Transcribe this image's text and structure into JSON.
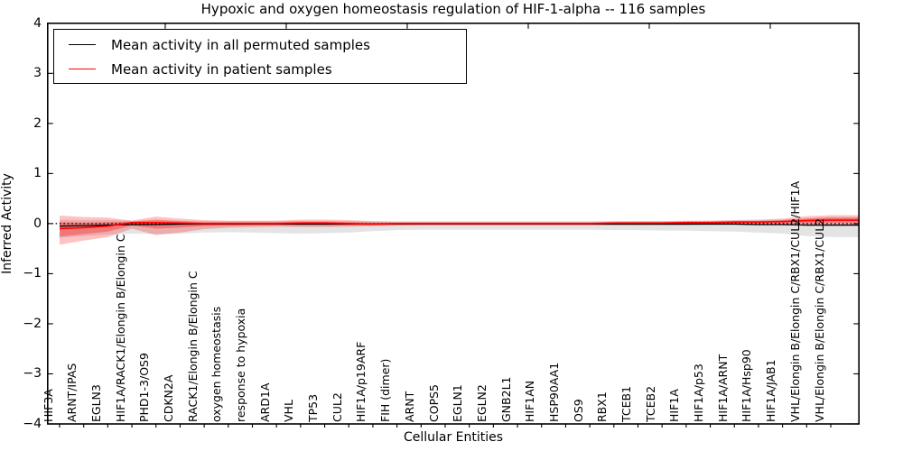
{
  "title": "Hypoxic and oxygen homeostasis regulation of HIF-1-alpha -- 116 samples",
  "legend": {
    "entries": [
      {
        "label": "Mean activity in all permuted samples",
        "color": "#000000"
      },
      {
        "label": "Mean activity in patient samples",
        "color": "#ff0000"
      }
    ],
    "position": "upper left"
  },
  "chart_data": {
    "type": "line",
    "title": "Hypoxic and oxygen homeostasis regulation of HIF-1-alpha -- 116 samples",
    "xlabel": "Cellular Entities",
    "ylabel": "Inferred Activity",
    "ylim": [
      -4,
      4
    ],
    "yticks": [
      4,
      3,
      2,
      1,
      0,
      -1,
      -2,
      -3,
      -4
    ],
    "grid": false,
    "zero_line": {
      "style": "dotted",
      "color": "#000000",
      "y": 0
    },
    "categories": [
      "HIF3A",
      "ARNT/IPAS",
      "EGLN3",
      "HIF1A/RACK1/Elongin B/Elongin C",
      "PHD1-3/OS9",
      "CDKN2A",
      "RACK1/Elongin B/Elongin C",
      "oxygen homeostasis",
      "response to hypoxia",
      "ARD1A",
      "VHL",
      "TP53",
      "CUL2",
      "HIF1A/p19ARF",
      "FIH (dimer)",
      "ARNT",
      "COPS5",
      "EGLN1",
      "EGLN2",
      "GNB2L1",
      "HIF1AN",
      "HSP90AA1",
      "OS9",
      "RBX1",
      "TCEB1",
      "TCEB2",
      "HIF1A",
      "HIF1A/p53",
      "HIF1A/ARNT",
      "HIF1A/Hsp90",
      "HIF1A/JAB1",
      "VHL/Elongin B/Elongin C/RBX1/CUL2/HIF1A",
      "VHL/Elongin B/Elongin C/RBX1/CUL2"
    ],
    "series": [
      {
        "name": "Mean activity in all permuted samples",
        "color": "#000000",
        "values": [
          -0.05,
          -0.04,
          -0.03,
          -0.02,
          -0.02,
          -0.01,
          -0.01,
          -0.01,
          -0.01,
          -0.01,
          -0.01,
          -0.01,
          -0.01,
          -0.01,
          -0.01,
          -0.01,
          -0.01,
          -0.01,
          -0.01,
          -0.01,
          -0.01,
          -0.01,
          -0.01,
          -0.01,
          -0.01,
          -0.01,
          -0.01,
          -0.01,
          -0.01,
          -0.02,
          -0.02,
          -0.03,
          -0.03
        ]
      },
      {
        "name": "Mean activity in patient samples",
        "color": "#ff0000",
        "values": [
          -0.1,
          -0.08,
          -0.05,
          0.02,
          0.02,
          0.01,
          0.0,
          0.0,
          0.0,
          0.0,
          0.01,
          0.01,
          0.0,
          -0.01,
          0.0,
          0.0,
          0.0,
          0.0,
          0.0,
          0.0,
          0.0,
          0.0,
          0.0,
          0.01,
          0.01,
          0.01,
          0.02,
          0.02,
          0.03,
          0.03,
          0.04,
          0.06,
          0.07
        ]
      }
    ],
    "bands": [
      {
        "name": "permuted-sample-range",
        "color": "#aaaaaa",
        "alpha": 0.32,
        "upper": [
          0.08,
          0.07,
          0.07,
          0.06,
          0.06,
          0.06,
          0.05,
          0.05,
          0.05,
          0.05,
          0.05,
          0.05,
          0.05,
          0.04,
          0.04,
          0.04,
          0.04,
          0.04,
          0.04,
          0.04,
          0.04,
          0.04,
          0.04,
          0.04,
          0.05,
          0.05,
          0.05,
          0.06,
          0.06,
          0.07,
          0.08,
          0.11,
          0.13
        ],
        "lower": [
          -0.28,
          -0.25,
          -0.22,
          -0.2,
          -0.21,
          -0.2,
          -0.18,
          -0.17,
          -0.18,
          -0.19,
          -0.2,
          -0.19,
          -0.18,
          -0.15,
          -0.13,
          -0.12,
          -0.12,
          -0.12,
          -0.12,
          -0.12,
          -0.12,
          -0.12,
          -0.12,
          -0.13,
          -0.13,
          -0.14,
          -0.14,
          -0.15,
          -0.16,
          -0.18,
          -0.2,
          -0.25,
          -0.27
        ]
      },
      {
        "name": "patient-sample-range-outer",
        "color": "#ff0000",
        "alpha": 0.24,
        "upper": [
          0.16,
          0.13,
          0.12,
          0.06,
          0.14,
          0.1,
          0.07,
          0.06,
          0.06,
          0.06,
          0.08,
          0.08,
          0.07,
          0.05,
          0.04,
          0.04,
          0.04,
          0.04,
          0.04,
          0.04,
          0.04,
          0.04,
          0.04,
          0.05,
          0.05,
          0.05,
          0.06,
          0.06,
          0.07,
          0.08,
          0.1,
          0.15,
          0.17
        ],
        "lower": [
          -0.42,
          -0.34,
          -0.27,
          -0.1,
          -0.23,
          -0.18,
          -0.11,
          -0.08,
          -0.07,
          -0.06,
          -0.07,
          -0.07,
          -0.06,
          -0.05,
          -0.04,
          -0.03,
          -0.03,
          -0.03,
          -0.03,
          -0.03,
          -0.03,
          -0.03,
          -0.03,
          -0.03,
          -0.03,
          -0.03,
          -0.03,
          -0.02,
          -0.02,
          -0.02,
          -0.02,
          -0.04,
          -0.03
        ],
        "alpha_note": "light outer confidence band"
      },
      {
        "name": "patient-sample-range-inner",
        "color": "#ff0000",
        "alpha": 0.3,
        "upper": [
          0.03,
          0.02,
          0.03,
          0.04,
          0.08,
          0.05,
          0.03,
          0.03,
          0.03,
          0.03,
          0.04,
          0.04,
          0.03,
          0.02,
          0.02,
          0.02,
          0.02,
          0.02,
          0.02,
          0.02,
          0.02,
          0.02,
          0.02,
          0.03,
          0.03,
          0.03,
          0.04,
          0.04,
          0.05,
          0.05,
          0.07,
          0.1,
          0.12
        ],
        "lower": [
          -0.26,
          -0.21,
          -0.16,
          -0.04,
          -0.1,
          -0.08,
          -0.05,
          -0.04,
          -0.03,
          -0.03,
          -0.03,
          -0.03,
          -0.03,
          -0.03,
          -0.02,
          -0.01,
          -0.01,
          -0.01,
          -0.01,
          -0.01,
          -0.01,
          -0.01,
          -0.01,
          -0.01,
          -0.01,
          -0.01,
          0.0,
          0.0,
          0.0,
          0.0,
          0.01,
          0.01,
          0.02
        ]
      }
    ],
    "legend_position": "upper left"
  }
}
